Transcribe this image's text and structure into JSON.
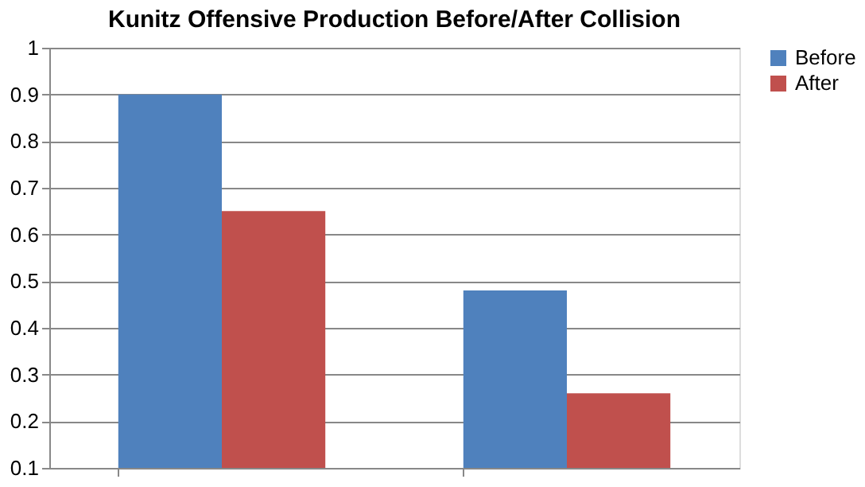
{
  "chart_data": {
    "type": "bar",
    "title": "Kunitz Offensive Production Before/After Collision",
    "categories": [
      null,
      null
    ],
    "series": [
      {
        "name": "Before",
        "color": "#4f81bd",
        "values": [
          0.9,
          0.48
        ]
      },
      {
        "name": "After",
        "color": "#c0504d",
        "values": [
          0.65,
          0.26
        ]
      }
    ],
    "ylim": [
      0.1,
      1
    ],
    "yticks": [
      0.1,
      0.2,
      0.3,
      0.4,
      0.5,
      0.6,
      0.7,
      0.8,
      0.9,
      1
    ],
    "grid": "y",
    "legend": "right",
    "tick_labels": "y"
  }
}
